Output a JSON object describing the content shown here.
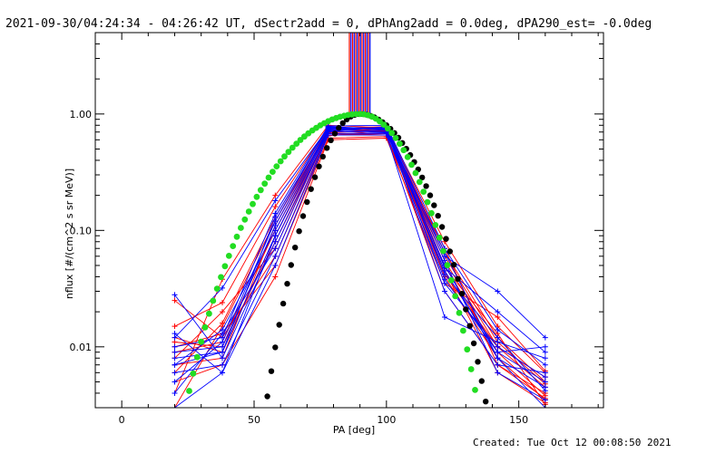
{
  "title": "2021-09-30/04:24:34 - 04:26:42 UT, dSectr2add = 0, dPhAng2add = 0.0deg, dPA290_est= -0.0deg",
  "footer": "Created: Tue Oct 12 00:08:50 2021",
  "colors": {
    "red": "#ff0000",
    "blue": "#0000ff",
    "black": "#000000",
    "green": "#22dd22"
  },
  "chart_data": {
    "type": "line",
    "xlabel": "PA [deg]",
    "ylabel": "nflux [#/(cm^2 s sr MeV)]",
    "xlim": [
      -10,
      182
    ],
    "ylim": [
      0.003,
      5.0
    ],
    "yscale": "log",
    "xticks": [
      0,
      50,
      100,
      150
    ],
    "xtick_labels": [
      "0",
      "50",
      "100",
      "150"
    ],
    "yticks": [
      0.01,
      0.1,
      1.0
    ],
    "ytick_labels": [
      "0.01",
      "0.10",
      "1.00"
    ],
    "grid": false,
    "pitch_angles": [
      20,
      38,
      58,
      78,
      100,
      122,
      142,
      160
    ],
    "series": [
      {
        "color": "red",
        "values": [
          0.009,
          0.011,
          0.1,
          0.7,
          0.7,
          0.055,
          0.01,
          0.0045
        ]
      },
      {
        "color": "red",
        "values": [
          0.025,
          0.012,
          0.06,
          0.65,
          0.72,
          0.04,
          0.008,
          0.0035
        ]
      },
      {
        "color": "red",
        "values": [
          0.006,
          0.016,
          0.13,
          0.75,
          0.78,
          0.065,
          0.012,
          0.005
        ]
      },
      {
        "color": "red",
        "values": [
          0.012,
          0.009,
          0.09,
          0.68,
          0.66,
          0.03,
          0.007,
          0.004
        ]
      },
      {
        "color": "red",
        "values": [
          0.004,
          0.038,
          0.2,
          0.8,
          0.76,
          0.08,
          0.015,
          0.006
        ]
      },
      {
        "color": "red",
        "values": [
          0.01,
          0.013,
          0.05,
          0.62,
          0.64,
          0.045,
          0.006,
          0.0033
        ]
      },
      {
        "color": "red",
        "values": [
          0.007,
          0.008,
          0.11,
          0.72,
          0.74,
          0.05,
          0.009,
          0.0038
        ]
      },
      {
        "color": "red",
        "values": [
          0.015,
          0.024,
          0.16,
          0.77,
          0.7,
          0.06,
          0.011,
          0.0048
        ]
      },
      {
        "color": "red",
        "values": [
          0.005,
          0.007,
          0.04,
          0.6,
          0.62,
          0.035,
          0.018,
          0.0062
        ]
      },
      {
        "color": "red",
        "values": [
          0.011,
          0.01,
          0.08,
          0.66,
          0.68,
          0.07,
          0.007,
          0.0036
        ]
      },
      {
        "color": "red",
        "values": [
          0.003,
          0.015,
          0.12,
          0.73,
          0.71,
          0.048,
          0.013,
          0.0032
        ]
      },
      {
        "color": "red",
        "values": [
          0.008,
          0.02,
          0.07,
          0.69,
          0.73,
          0.042,
          0.01,
          0.0055
        ]
      },
      {
        "color": "blue",
        "values": [
          0.008,
          0.009,
          0.09,
          0.72,
          0.72,
          0.045,
          0.009,
          0.01
        ]
      },
      {
        "color": "blue",
        "values": [
          0.028,
          0.008,
          0.08,
          0.7,
          0.78,
          0.06,
          0.03,
          0.012
        ]
      },
      {
        "color": "blue",
        "values": [
          0.005,
          0.011,
          0.12,
          0.78,
          0.74,
          0.03,
          0.007,
          0.006
        ]
      },
      {
        "color": "blue",
        "values": [
          0.007,
          0.014,
          0.1,
          0.74,
          0.7,
          0.05,
          0.008,
          0.0045
        ]
      },
      {
        "color": "blue",
        "values": [
          0.003,
          0.006,
          0.05,
          0.66,
          0.66,
          0.018,
          0.011,
          0.008
        ]
      },
      {
        "color": "blue",
        "values": [
          0.01,
          0.012,
          0.14,
          0.79,
          0.8,
          0.07,
          0.014,
          0.007
        ]
      },
      {
        "color": "blue",
        "values": [
          0.012,
          0.032,
          0.18,
          0.76,
          0.76,
          0.055,
          0.006,
          0.0035
        ]
      },
      {
        "color": "blue",
        "values": [
          0.006,
          0.007,
          0.06,
          0.68,
          0.68,
          0.038,
          0.009,
          0.005
        ]
      },
      {
        "color": "blue",
        "values": [
          0.009,
          0.01,
          0.11,
          0.75,
          0.75,
          0.042,
          0.012,
          0.0042
        ]
      },
      {
        "color": "blue",
        "values": [
          0.004,
          0.013,
          0.07,
          0.71,
          0.69,
          0.065,
          0.008,
          0.003
        ]
      },
      {
        "color": "blue",
        "values": [
          0.013,
          0.006,
          0.09,
          0.73,
          0.77,
          0.048,
          0.02,
          0.009
        ]
      },
      {
        "color": "blue",
        "values": [
          0.007,
          0.009,
          0.13,
          0.77,
          0.73,
          0.035,
          0.01,
          0.0055
        ]
      }
    ],
    "model_black": {
      "color": "black",
      "pa_min": 43,
      "pa_max": 160,
      "formula": "sin(PA)^n, n≈28 below 90 deg, n≈14.5 above 90 deg"
    },
    "model_green": {
      "color": "green",
      "pa_min": 24,
      "pa_max": 137,
      "formula": "sin(PA)^n, n≈6.5 below 90 deg, n≈17 above 90 deg"
    },
    "vertical_spikes": {
      "pa_min": 86,
      "pa_max": 94,
      "colors": [
        "red",
        "blue"
      ]
    }
  }
}
